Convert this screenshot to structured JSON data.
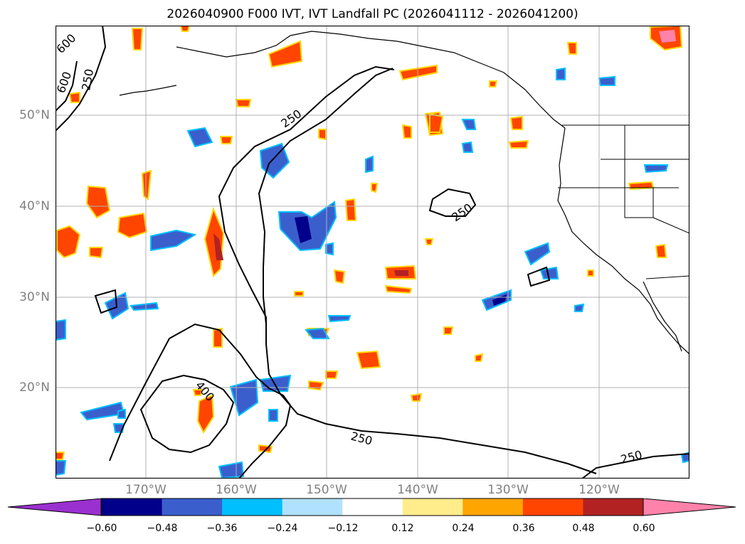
{
  "title": "2026040900 F000 IVT, IVT Landfall PC (2026041112 - 2026041200)",
  "axes": {
    "lat_labels": [
      "50°N",
      "40°N",
      "30°N",
      "20°N"
    ],
    "lon_labels": [
      "170°W",
      "160°W",
      "150°W",
      "140°W",
      "130°W",
      "120°W"
    ]
  },
  "contour_labels": [
    "600",
    "600",
    "250",
    "250",
    "250",
    "400",
    "250",
    "250"
  ],
  "colorbar": {
    "ticks": [
      "−0.60",
      "−0.48",
      "−0.36",
      "−0.24",
      "−0.12",
      "0.12",
      "0.24",
      "0.36",
      "0.48",
      "0.60"
    ],
    "colors": [
      "#9b30d0",
      "#00008b",
      "#3a5fcd",
      "#00bfff",
      "#b0e2ff",
      "#ffffff",
      "#ffec8b",
      "#ffa500",
      "#ff4500",
      "#b22222",
      "#ff82ab"
    ]
  }
}
